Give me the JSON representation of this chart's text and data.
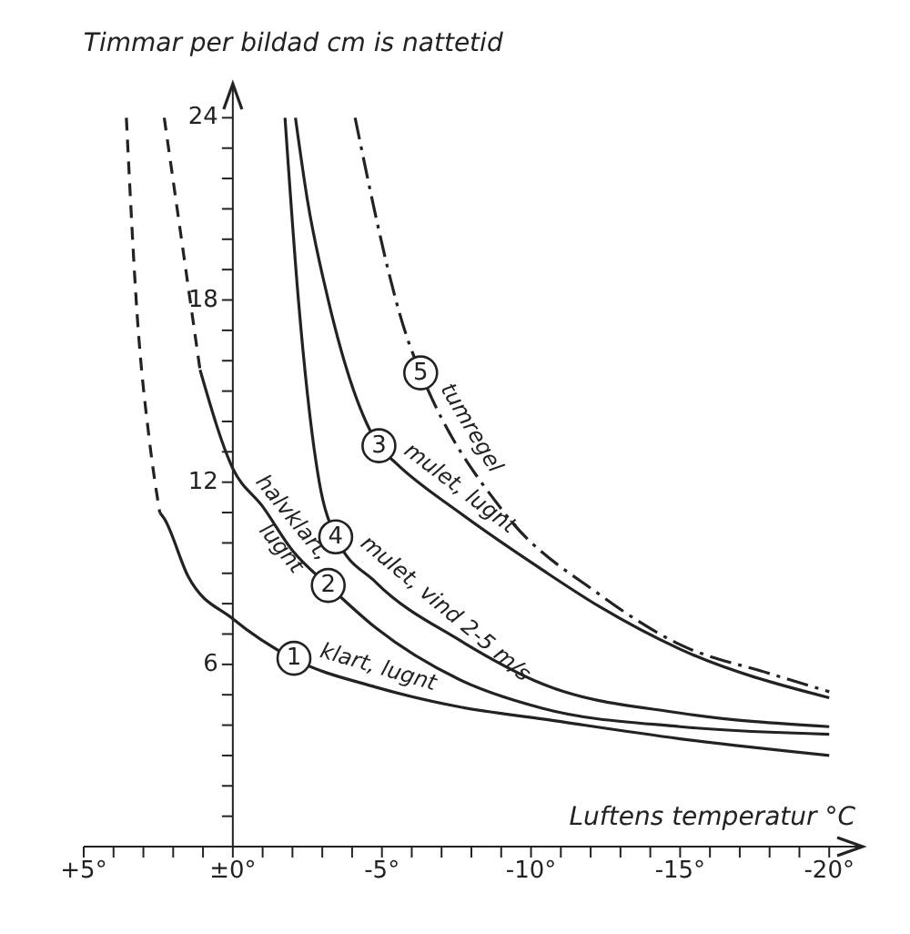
{
  "chart_data": {
    "type": "line",
    "xlabel": "Luftens temperatur °C",
    "ylabel": "Timmar per bildad cm is nattetid",
    "xlim": [
      5,
      -21
    ],
    "ylim": [
      0,
      25
    ],
    "xticks": [
      {
        "value": 5,
        "label": "+5°"
      },
      {
        "value": 4,
        "label": null
      },
      {
        "value": 3,
        "label": null
      },
      {
        "value": 2,
        "label": null
      },
      {
        "value": 1,
        "label": null
      },
      {
        "value": 0,
        "label": "±0°"
      },
      {
        "value": -1,
        "label": null
      },
      {
        "value": -2,
        "label": null
      },
      {
        "value": -3,
        "label": null
      },
      {
        "value": -4,
        "label": null
      },
      {
        "value": -5,
        "label": "-5°"
      },
      {
        "value": -6,
        "label": null
      },
      {
        "value": -7,
        "label": null
      },
      {
        "value": -8,
        "label": null
      },
      {
        "value": -9,
        "label": null
      },
      {
        "value": -10,
        "label": "-10°"
      },
      {
        "value": -11,
        "label": null
      },
      {
        "value": -12,
        "label": null
      },
      {
        "value": -13,
        "label": null
      },
      {
        "value": -14,
        "label": null
      },
      {
        "value": -15,
        "label": "-15°"
      },
      {
        "value": -16,
        "label": null
      },
      {
        "value": -17,
        "label": null
      },
      {
        "value": -18,
        "label": null
      },
      {
        "value": -19,
        "label": null
      },
      {
        "value": -20,
        "label": "-20°"
      }
    ],
    "yticks": [
      {
        "value": 1,
        "label": null
      },
      {
        "value": 2,
        "label": null
      },
      {
        "value": 3,
        "label": null
      },
      {
        "value": 4,
        "label": null
      },
      {
        "value": 5,
        "label": null
      },
      6,
      {
        "value": 7,
        "label": null
      },
      {
        "value": 8,
        "label": null
      },
      {
        "value": 9,
        "label": null
      },
      {
        "value": 10,
        "label": null
      },
      {
        "value": 11,
        "label": null
      },
      12,
      {
        "value": 13,
        "label": null
      },
      {
        "value": 14,
        "label": null
      },
      {
        "value": 15,
        "label": null
      },
      {
        "value": 16,
        "label": null
      },
      {
        "value": 17,
        "label": null
      },
      18,
      {
        "value": 19,
        "label": null
      },
      {
        "value": 20,
        "label": null
      },
      {
        "value": 21,
        "label": null
      },
      {
        "value": 22,
        "label": null
      },
      {
        "value": 23,
        "label": null
      },
      24
    ],
    "grid": false,
    "legend": false,
    "marker": "none",
    "series": [
      {
        "color": "#222222",
        "line_style": "dashed",
        "x": [
          3.57,
          3.2,
          2.8,
          2.45
        ],
        "values": [
          24,
          17.4,
          13.4,
          11.0
        ]
      },
      {
        "name": "klart, lugnt",
        "color": "#222222",
        "line_style": "solid",
        "x": [
          2.45,
          2.3,
          1.5,
          0,
          -2,
          -4.8,
          -7.6,
          -10.4,
          -15,
          -20
        ],
        "values": [
          11.0,
          10.8,
          8.9,
          7.5,
          6.2,
          5.25,
          4.6,
          4.2,
          3.55,
          3.0
        ]
      },
      {
        "color": "#222222",
        "line_style": "dashed",
        "x": [
          2.3,
          1.75,
          1.1
        ],
        "values": [
          24,
          20.2,
          15.7
        ]
      },
      {
        "name": "halvklart, lugnt",
        "color": "#222222",
        "line_style": "solid",
        "x": [
          1.1,
          0,
          -1,
          -2,
          -3.2,
          -4.8,
          -7.6,
          -10.4,
          -15,
          -20
        ],
        "values": [
          15.7,
          12.45,
          11.2,
          9.75,
          8.6,
          7.2,
          5.5,
          4.55,
          3.95,
          3.7
        ]
      },
      {
        "name": "mulet, lugnt",
        "color": "#222222",
        "line_style": "solid",
        "x": [
          -2.1,
          -2.5,
          -3.2,
          -4.9,
          -5.5,
          -7.6,
          -10.4,
          -12.3,
          -15,
          -20
        ],
        "values": [
          24,
          21.3,
          18,
          13.2,
          12.6,
          11.0,
          9.1,
          7.9,
          6.5,
          4.9
        ]
      },
      {
        "name": "mulet, vind 2-5 m/s",
        "color": "#222222",
        "line_style": "solid",
        "x": [
          -1.75,
          -2.2,
          -2.9,
          -3.45,
          -4.8,
          -7.6,
          -10.4,
          -15,
          -20
        ],
        "values": [
          24,
          18,
          12,
          10.2,
          8.7,
          6.8,
          5.35,
          4.4,
          3.95
        ]
      },
      {
        "name": "tumregel",
        "color": "#222222",
        "line_style": "dashdot",
        "x": [
          -4.1,
          -5.9,
          -6.3,
          -9.1,
          -12.3,
          -15,
          -18,
          -20
        ],
        "values": [
          24,
          16.6,
          15.6,
          11.0,
          8.3,
          6.65,
          5.7,
          5.1
        ]
      }
    ],
    "annotations": [
      {
        "text": "1",
        "x": -2.05,
        "y": 6.2
      },
      {
        "text": "2",
        "x": -3.2,
        "y": 8.6
      },
      {
        "text": "3",
        "x": -4.9,
        "y": 13.2
      },
      {
        "text": "4",
        "x": -3.45,
        "y": 10.2
      },
      {
        "text": "5",
        "x": -6.3,
        "y": 15.6
      }
    ]
  }
}
